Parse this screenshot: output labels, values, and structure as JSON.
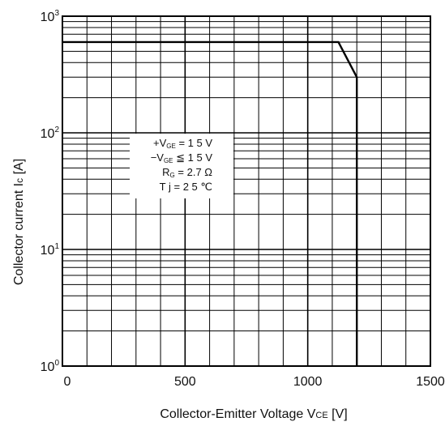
{
  "chart_data": {
    "type": "line",
    "title": "",
    "xlabel": "Collector-Emitter Voltage V",
    "xlabel_sub": "CE",
    "xlabel_unit": "[V]",
    "ylabel": "Collector current I",
    "ylabel_sub": "c",
    "ylabel_unit": "[A]",
    "xlim": [
      0,
      1500
    ],
    "ylim": [
      1,
      1000
    ],
    "yscale": "log",
    "grid": true,
    "x_ticks": [
      0,
      500,
      1000,
      1500
    ],
    "x_tick_labels": [
      "0",
      "500",
      "1000",
      "1500"
    ],
    "y_tick_labels": [
      {
        "value": 1,
        "base": "10",
        "exp": "0"
      },
      {
        "value": 10,
        "base": "10",
        "exp": "1"
      },
      {
        "value": 100,
        "base": "10",
        "exp": "2"
      },
      {
        "value": 1000,
        "base": "10",
        "exp": "3"
      }
    ],
    "series": [
      {
        "x": [
          0,
          1125,
          1200,
          1200
        ],
        "y": [
          600,
          600,
          300,
          1
        ]
      }
    ],
    "annotations": [
      {
        "prefix": "+V",
        "sub": "GE",
        "text": "= 1 5 V"
      },
      {
        "prefix": "−V",
        "sub": "GE",
        "text": "≦ 1 5 V"
      },
      {
        "prefix": "R",
        "sub": "G",
        "text": "= 2.7 Ω"
      },
      {
        "prefix": "T j",
        "sub": "",
        "text": "= 2 5 ℃"
      }
    ]
  }
}
